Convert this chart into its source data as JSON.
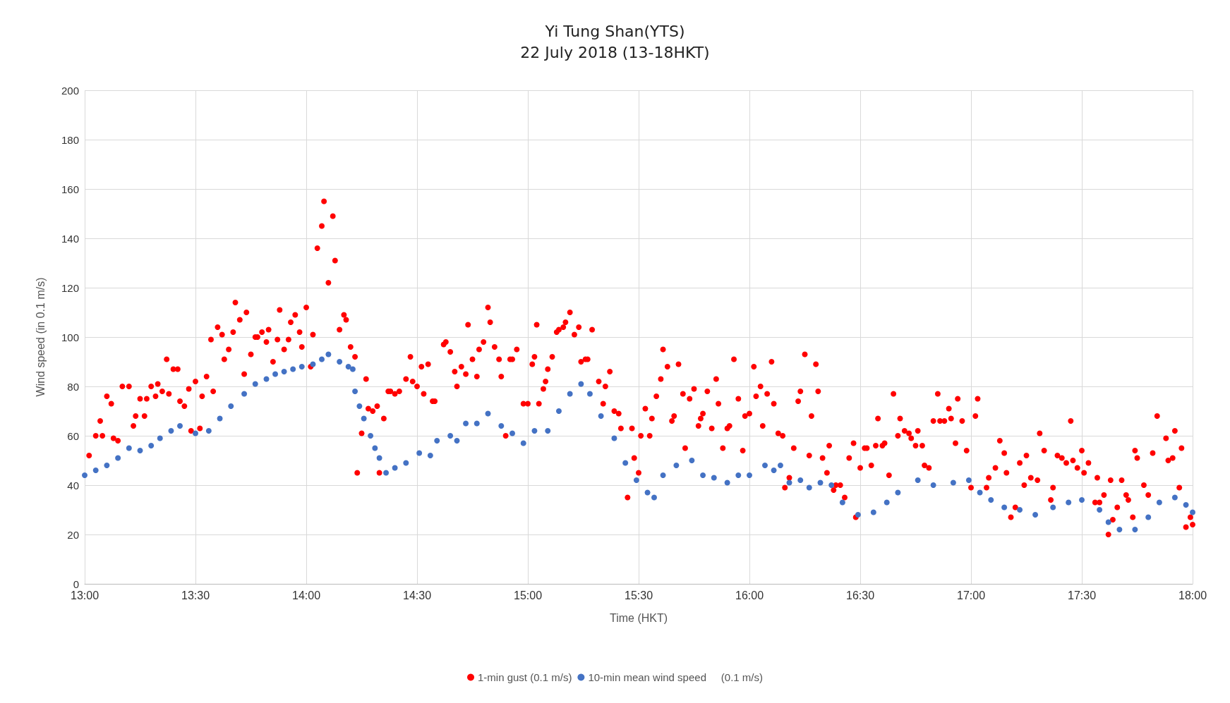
{
  "chart_data": {
    "type": "scatter",
    "title": "Yi Tung Shan(YTS)",
    "subtitle": "22 July 2018 (13-18HKT)",
    "xlabel": "Time (HKT)",
    "ylabel": "Wind speed (in 0.1 m/s)",
    "xlim": [
      13,
      18
    ],
    "xticks": [
      {
        "value": 13,
        "label": "13:00"
      },
      {
        "value": 13.5,
        "label": "13:30"
      },
      {
        "value": 14,
        "label": "14:00"
      },
      {
        "value": 14.5,
        "label": "14:30"
      },
      {
        "value": 15,
        "label": "15:00"
      },
      {
        "value": 15.5,
        "label": "15:30"
      },
      {
        "value": 16,
        "label": "16:00"
      },
      {
        "value": 16.5,
        "label": "16:30"
      },
      {
        "value": 17,
        "label": "17:00"
      },
      {
        "value": 17.5,
        "label": "17:30"
      },
      {
        "value": 18,
        "label": "18:00"
      }
    ],
    "ylim": [
      0,
      200
    ],
    "yticks": [
      0,
      20,
      40,
      60,
      80,
      100,
      120,
      140,
      160,
      180,
      200
    ],
    "grid": true,
    "legend": "bottom",
    "marker": "circle",
    "series": [
      {
        "name": "1-min gust (0.1 m/s)",
        "color": "#ff0000",
        "x": [
          13.02,
          13.05,
          13.07,
          13.08,
          13.1,
          13.12,
          13.13,
          13.15,
          13.17,
          13.2,
          13.22,
          13.23,
          13.25,
          13.27,
          13.28,
          13.3,
          13.32,
          13.33,
          13.35,
          13.37,
          13.38,
          13.4,
          13.42,
          13.43,
          13.45,
          13.47,
          13.48,
          13.5,
          13.52,
          13.53,
          13.55,
          13.57,
          13.58,
          13.6,
          13.62,
          13.63,
          13.65,
          13.67,
          13.68,
          13.7,
          13.72,
          13.73,
          13.75,
          13.77,
          13.78,
          13.8,
          13.82,
          13.83,
          13.85,
          13.87,
          13.88,
          13.9,
          13.92,
          13.93,
          13.95,
          13.97,
          13.98,
          14.0,
          14.02,
          14.03,
          14.05,
          14.07,
          14.08,
          14.1,
          14.12,
          14.13,
          14.15,
          14.17,
          14.18,
          14.2,
          14.22,
          14.23,
          14.25,
          14.27,
          14.28,
          14.3,
          14.32,
          14.33,
          14.35,
          14.37,
          14.38,
          14.4,
          14.42,
          14.45,
          14.47,
          14.48,
          14.5,
          14.52,
          14.53,
          14.55,
          14.57,
          14.58,
          14.62,
          14.63,
          14.65,
          14.67,
          14.68,
          14.7,
          14.72,
          14.73,
          14.75,
          14.77,
          14.78,
          14.8,
          14.82,
          14.83,
          14.85,
          14.87,
          14.88,
          14.9,
          14.92,
          14.93,
          14.95,
          14.98,
          15.0,
          15.02,
          15.03,
          15.04,
          15.05,
          15.07,
          15.08,
          15.09,
          15.11,
          15.13,
          15.14,
          15.16,
          15.17,
          15.19,
          15.21,
          15.23,
          15.24,
          15.26,
          15.27,
          15.29,
          15.32,
          15.34,
          15.35,
          15.37,
          15.39,
          15.41,
          15.42,
          15.45,
          15.47,
          15.48,
          15.5,
          15.51,
          15.53,
          15.55,
          15.56,
          15.58,
          15.6,
          15.61,
          15.63,
          15.65,
          15.66,
          15.68,
          15.7,
          15.71,
          15.73,
          15.75,
          15.77,
          15.78,
          15.79,
          15.81,
          15.83,
          15.85,
          15.86,
          15.88,
          15.9,
          15.91,
          15.93,
          15.95,
          15.97,
          15.98,
          16.0,
          16.02,
          16.03,
          16.05,
          16.06,
          16.08,
          16.1,
          16.11,
          16.13,
          16.15,
          16.16,
          16.18,
          16.2,
          16.22,
          16.23,
          16.25,
          16.27,
          16.28,
          16.3,
          16.31,
          16.33,
          16.35,
          16.36,
          16.38,
          16.39,
          16.41,
          16.43,
          16.45,
          16.47,
          16.48,
          16.5,
          16.52,
          16.53,
          16.55,
          16.57,
          16.58,
          16.6,
          16.61,
          16.63,
          16.65,
          16.67,
          16.68,
          16.7,
          16.72,
          16.73,
          16.75,
          16.76,
          16.78,
          16.79,
          16.81,
          16.83,
          16.85,
          16.86,
          16.88,
          16.9,
          16.91,
          16.93,
          16.94,
          16.96,
          16.98,
          17.0,
          17.02,
          17.03,
          17.07,
          17.08,
          17.11,
          17.13,
          17.15,
          17.16,
          17.18,
          17.2,
          17.22,
          17.24,
          17.25,
          17.27,
          17.3,
          17.31,
          17.33,
          17.36,
          17.37,
          17.39,
          17.41,
          17.43,
          17.45,
          17.46,
          17.48,
          17.5,
          17.51,
          17.53,
          17.56,
          17.57,
          17.58,
          17.6,
          17.62,
          17.63,
          17.64,
          17.66,
          17.68,
          17.7,
          17.71,
          17.73,
          17.74,
          17.75,
          17.78,
          17.8,
          17.82,
          17.84,
          17.88,
          17.89,
          17.91,
          17.92,
          17.94,
          17.95,
          17.97,
          17.99,
          18.0
        ],
        "values": [
          52,
          60,
          66,
          60,
          76,
          73,
          59,
          58,
          80,
          80,
          64,
          68,
          75,
          68,
          75,
          80,
          76,
          81,
          78,
          91,
          77,
          87,
          87,
          74,
          72,
          79,
          62,
          82,
          63,
          76,
          84,
          99,
          78,
          104,
          101,
          91,
          95,
          102,
          114,
          107,
          85,
          110,
          93,
          100,
          100,
          102,
          98,
          103,
          90,
          99,
          111,
          95,
          99,
          106,
          109,
          102,
          96,
          112,
          88,
          101,
          136,
          145,
          155,
          122,
          149,
          131,
          103,
          109,
          107,
          96,
          92,
          45,
          61,
          83,
          71,
          70,
          72,
          45,
          67,
          78,
          78,
          77,
          78,
          83,
          92,
          82,
          80,
          88,
          77,
          89,
          74,
          74,
          97,
          98,
          94,
          86,
          80,
          88,
          85,
          105,
          91,
          84,
          95,
          98,
          112,
          106,
          96,
          91,
          84,
          60,
          91,
          91,
          95,
          73,
          73,
          89,
          92,
          105,
          73,
          79,
          82,
          87,
          92,
          102,
          103,
          104,
          106,
          110,
          101,
          104,
          90,
          91,
          91,
          103,
          82,
          73,
          80,
          86,
          70,
          69,
          63,
          35,
          63,
          51,
          45,
          60,
          71,
          60,
          67,
          76,
          83,
          95,
          88,
          66,
          68,
          89,
          77,
          55,
          75,
          79,
          64,
          67,
          69,
          78,
          63,
          83,
          73,
          55,
          63,
          64,
          91,
          75,
          54,
          68,
          69,
          88,
          76,
          80,
          64,
          77,
          90,
          73,
          61,
          60,
          39,
          43,
          55,
          74,
          78,
          93,
          52,
          68,
          89,
          78,
          51,
          45,
          56,
          38,
          40,
          40,
          35,
          51,
          57,
          27,
          47,
          55,
          55,
          48,
          56,
          67,
          56,
          57,
          44,
          77,
          60,
          67,
          62,
          61,
          59,
          56,
          62,
          56,
          48,
          47,
          66,
          77,
          66,
          66,
          71,
          67,
          57,
          75,
          66,
          54,
          39,
          68,
          75,
          39,
          43,
          47,
          58,
          53,
          45,
          27,
          31,
          49,
          40,
          52,
          43,
          42,
          61,
          54,
          34,
          39,
          52,
          51,
          49,
          66,
          50,
          47,
          54,
          45,
          49,
          33,
          43,
          33,
          36,
          20,
          42,
          26,
          31,
          42,
          36,
          34,
          27,
          54,
          51,
          40,
          36,
          53,
          68,
          59,
          50,
          51,
          62,
          39,
          55,
          23,
          27,
          24
        ]
      },
      {
        "name": "10-min mean wind speed     (0.1 m/s)",
        "color": "#4472c4",
        "x": [
          13.0,
          13.05,
          13.1,
          13.15,
          13.2,
          13.25,
          13.3,
          13.34,
          13.39,
          13.43,
          13.5,
          13.56,
          13.61,
          13.66,
          13.72,
          13.77,
          13.82,
          13.86,
          13.9,
          13.94,
          13.98,
          14.03,
          14.07,
          14.1,
          14.15,
          14.19,
          14.21,
          14.22,
          14.24,
          14.26,
          14.29,
          14.31,
          14.33,
          14.36,
          14.4,
          14.45,
          14.51,
          14.56,
          14.59,
          14.65,
          14.68,
          14.72,
          14.77,
          14.82,
          14.88,
          14.93,
          14.98,
          15.03,
          15.09,
          15.14,
          15.19,
          15.24,
          15.28,
          15.33,
          15.39,
          15.44,
          15.49,
          15.54,
          15.57,
          15.61,
          15.67,
          15.74,
          15.79,
          15.84,
          15.9,
          15.95,
          16.0,
          16.07,
          16.11,
          16.14,
          16.18,
          16.23,
          16.27,
          16.32,
          16.37,
          16.42,
          16.49,
          16.56,
          16.62,
          16.67,
          16.76,
          16.83,
          16.92,
          16.99,
          17.04,
          17.09,
          17.15,
          17.22,
          17.29,
          17.37,
          17.44,
          17.5,
          17.58,
          17.62,
          17.67,
          17.74,
          17.8,
          17.85,
          17.92,
          17.97,
          18.0
        ],
        "values": [
          44,
          46,
          48,
          51,
          55,
          54,
          56,
          59,
          62,
          64,
          61,
          62,
          67,
          72,
          77,
          81,
          83,
          85,
          86,
          87,
          88,
          89,
          91,
          93,
          90,
          88,
          87,
          78,
          72,
          67,
          60,
          55,
          51,
          45,
          47,
          49,
          53,
          52,
          58,
          60,
          58,
          65,
          65,
          69,
          64,
          61,
          57,
          62,
          62,
          70,
          77,
          81,
          77,
          68,
          59,
          49,
          42,
          37,
          35,
          44,
          48,
          50,
          44,
          43,
          41,
          44,
          44,
          48,
          46,
          48,
          41,
          42,
          39,
          41,
          40,
          33,
          28,
          29,
          33,
          37,
          42,
          40,
          41,
          42,
          37,
          34,
          31,
          30,
          28,
          31,
          33,
          34,
          30,
          25,
          22,
          22,
          27,
          33,
          35,
          32,
          29
        ]
      }
    ]
  }
}
